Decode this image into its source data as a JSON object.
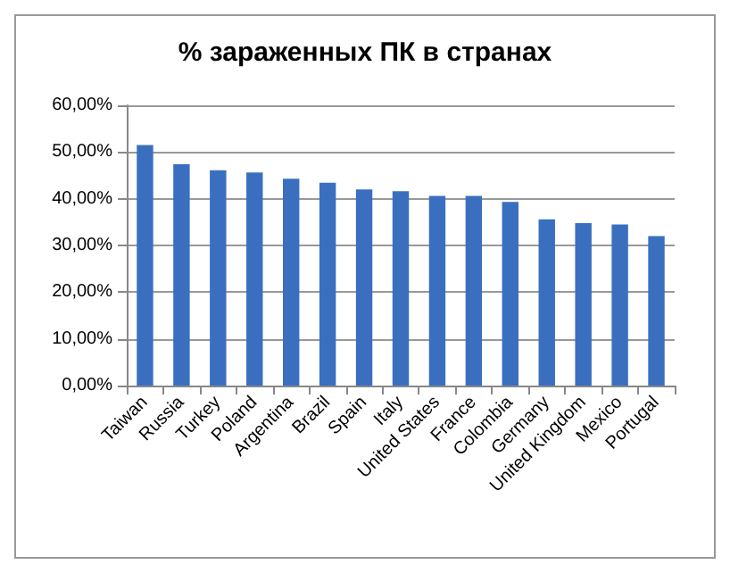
{
  "chart_data": {
    "type": "bar",
    "title": "% зараженных ПК в странах",
    "categories": [
      "Taiwan",
      "Russia",
      "Turkey",
      "Poland",
      "Argentina",
      "Brazil",
      "Spain",
      "Italy",
      "United States",
      "France",
      "Colombia",
      "Germany",
      "United Kingdom",
      "Mexico",
      "Portugal"
    ],
    "values": [
      51.5,
      47.4,
      46.1,
      45.6,
      44.3,
      43.4,
      42.0,
      41.6,
      40.6,
      40.6,
      39.3,
      35.6,
      34.8,
      34.5,
      32.0
    ],
    "color": "#3a6fc0",
    "ylim": [
      0,
      60
    ],
    "yticks": [
      {
        "value": 0,
        "label": "0,00%"
      },
      {
        "value": 10,
        "label": "10,00%"
      },
      {
        "value": 20,
        "label": "20,00%"
      },
      {
        "value": 30,
        "label": "30,00%"
      },
      {
        "value": 40,
        "label": "40,00%"
      },
      {
        "value": 50,
        "label": "50,00%"
      },
      {
        "value": 60,
        "label": "60,00%"
      }
    ],
    "grid": "y"
  }
}
